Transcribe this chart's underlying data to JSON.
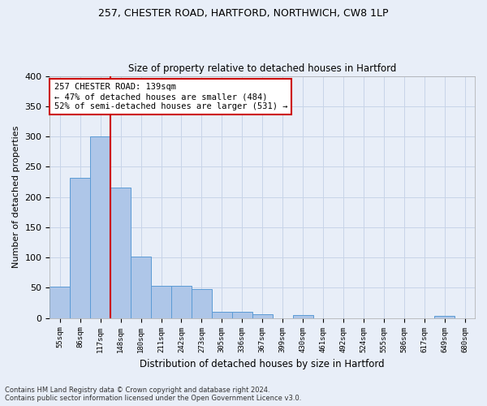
{
  "title1": "257, CHESTER ROAD, HARTFORD, NORTHWICH, CW8 1LP",
  "title2": "Size of property relative to detached houses in Hartford",
  "xlabel": "Distribution of detached houses by size in Hartford",
  "ylabel": "Number of detached properties",
  "footnote": "Contains HM Land Registry data © Crown copyright and database right 2024.\nContains public sector information licensed under the Open Government Licence v3.0.",
  "bar_labels": [
    "55sqm",
    "86sqm",
    "117sqm",
    "148sqm",
    "180sqm",
    "211sqm",
    "242sqm",
    "273sqm",
    "305sqm",
    "336sqm",
    "367sqm",
    "399sqm",
    "430sqm",
    "461sqm",
    "492sqm",
    "524sqm",
    "555sqm",
    "586sqm",
    "617sqm",
    "649sqm",
    "680sqm"
  ],
  "bar_values": [
    52,
    232,
    300,
    215,
    102,
    53,
    53,
    48,
    10,
    10,
    6,
    0,
    5,
    0,
    0,
    0,
    0,
    0,
    0,
    3,
    0
  ],
  "bar_color": "#aec6e8",
  "bar_edge_color": "#5b9bd5",
  "grid_color": "#c8d4e8",
  "background_color": "#e8eef8",
  "vline_color": "#cc0000",
  "vline_x_index": 2.5,
  "annotation_text": "257 CHESTER ROAD: 139sqm\n← 47% of detached houses are smaller (484)\n52% of semi-detached houses are larger (531) →",
  "annotation_box_color": "#ffffff",
  "annotation_box_edge": "#cc0000",
  "ylim": [
    0,
    400
  ],
  "yticks": [
    0,
    50,
    100,
    150,
    200,
    250,
    300,
    350,
    400
  ]
}
